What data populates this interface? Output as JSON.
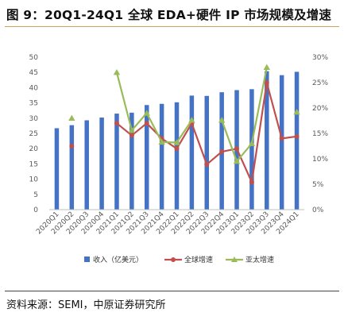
{
  "title": "图 9：20Q1-24Q1 全球 EDA+硬件 IP 市场规模及增速",
  "source": "资料来源：SEMI，中原证券研究所",
  "chart_data": {
    "type": "bar",
    "categories": [
      "2020Q1",
      "2020Q2",
      "2020Q3",
      "2020Q4",
      "2021Q1",
      "2021Q2",
      "2021Q3",
      "2021Q4",
      "2022Q1",
      "2022Q2",
      "2022Q3",
      "2022Q4",
      "2023Q1",
      "2023Q2",
      "2023Q3",
      "2023Q4",
      "2024Q1"
    ],
    "y_left": {
      "ticks": [
        "0",
        "5",
        "10",
        "15",
        "20",
        "25",
        "30",
        "35",
        "40",
        "45",
        "50"
      ],
      "range": [
        0,
        50
      ]
    },
    "y_right": {
      "ticks": [
        "0%",
        "5%",
        "10%",
        "15%",
        "20%",
        "25%",
        "30%"
      ],
      "range": [
        0,
        30
      ]
    },
    "grid": false,
    "legend_position": "bottom",
    "series": [
      {
        "name": "收入（亿美元）",
        "kind": "bar",
        "axis": "left",
        "color": "#4472c4",
        "values": [
          26.7,
          27.7,
          29.3,
          30.2,
          31.5,
          31.8,
          34.3,
          34.7,
          35.2,
          37.4,
          37.3,
          38.5,
          39.2,
          39.5,
          45.4,
          44.1,
          45.2
        ]
      },
      {
        "name": "全球增速",
        "kind": "line",
        "axis": "right",
        "color": "#c0504d",
        "marker": "circle",
        "values": [
          null,
          12.5,
          null,
          null,
          17.0,
          14.6,
          17.0,
          14.0,
          12.0,
          17.0,
          8.9,
          11.4,
          12.0,
          5.4,
          25.0,
          14.0,
          14.4
        ]
      },
      {
        "name": "亚太增速",
        "kind": "line",
        "axis": "right",
        "color": "#9bbb59",
        "marker": "triangle",
        "values": [
          null,
          18.0,
          null,
          null,
          27.0,
          15.6,
          19.0,
          13.3,
          13.2,
          17.6,
          null,
          17.6,
          9.5,
          13.0,
          28.0,
          null,
          19.2
        ]
      }
    ]
  }
}
